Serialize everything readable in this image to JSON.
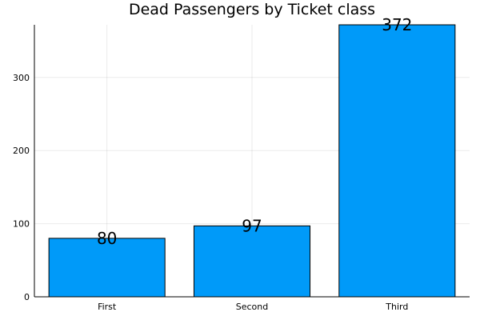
{
  "chart_data": {
    "type": "bar",
    "title": "Dead Passengers by Ticket class",
    "xlabel": "",
    "ylabel": "",
    "categories": [
      "First",
      "Second",
      "Third"
    ],
    "values": [
      80,
      97,
      372
    ],
    "data_labels": [
      "80",
      "97",
      "372"
    ],
    "ylim": [
      0,
      372
    ],
    "yticks": [
      0,
      100,
      200,
      300
    ],
    "ytick_labels": [
      "0",
      "100",
      "200",
      "300"
    ],
    "grid": true,
    "legend": "none",
    "bar_color": "#009af9"
  }
}
